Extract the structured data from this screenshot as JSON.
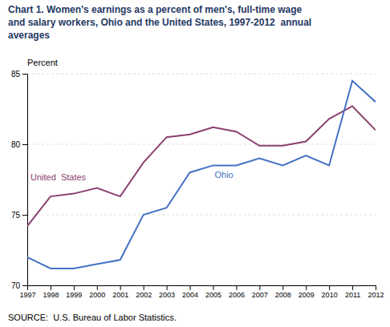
{
  "chart_data": {
    "type": "line",
    "title": "Chart 1. Women's earnings as a percent of men's, full-time wage\nand salary workers, Ohio and the United States, 1997-2012  annual\naverages",
    "y_label": "Percent",
    "annotations": [
      "SOURCE:  U.S. Bureau of Labor Statistics."
    ],
    "x": [
      1997,
      1998,
      1999,
      2000,
      2001,
      2002,
      2003,
      2004,
      2005,
      2006,
      2007,
      2008,
      2009,
      2010,
      2011,
      2012
    ],
    "series": [
      {
        "name": "United  States",
        "color": "#8B4070",
        "values": [
          74.2,
          76.3,
          76.5,
          76.9,
          76.3,
          78.7,
          80.5,
          80.7,
          81.2,
          80.9,
          79.9,
          79.9,
          80.2,
          81.8,
          82.7,
          81.0
        ]
      },
      {
        "name": "Ohio",
        "color": "#4472C4",
        "values": [
          72.0,
          71.2,
          71.2,
          71.5,
          71.8,
          75.0,
          75.5,
          78.0,
          78.5,
          78.5,
          79.0,
          78.5,
          79.2,
          78.5,
          84.5,
          83.0
        ]
      }
    ],
    "xlim": [
      1997,
      2012
    ],
    "xticks": [
      1997,
      1998,
      1999,
      2000,
      2001,
      2002,
      2003,
      2004,
      2005,
      2006,
      2007,
      2008,
      2009,
      2010,
      2011,
      2012
    ],
    "ylim": [
      70,
      85
    ],
    "yticks": [
      70,
      75,
      80,
      85
    ],
    "grid": true
  }
}
